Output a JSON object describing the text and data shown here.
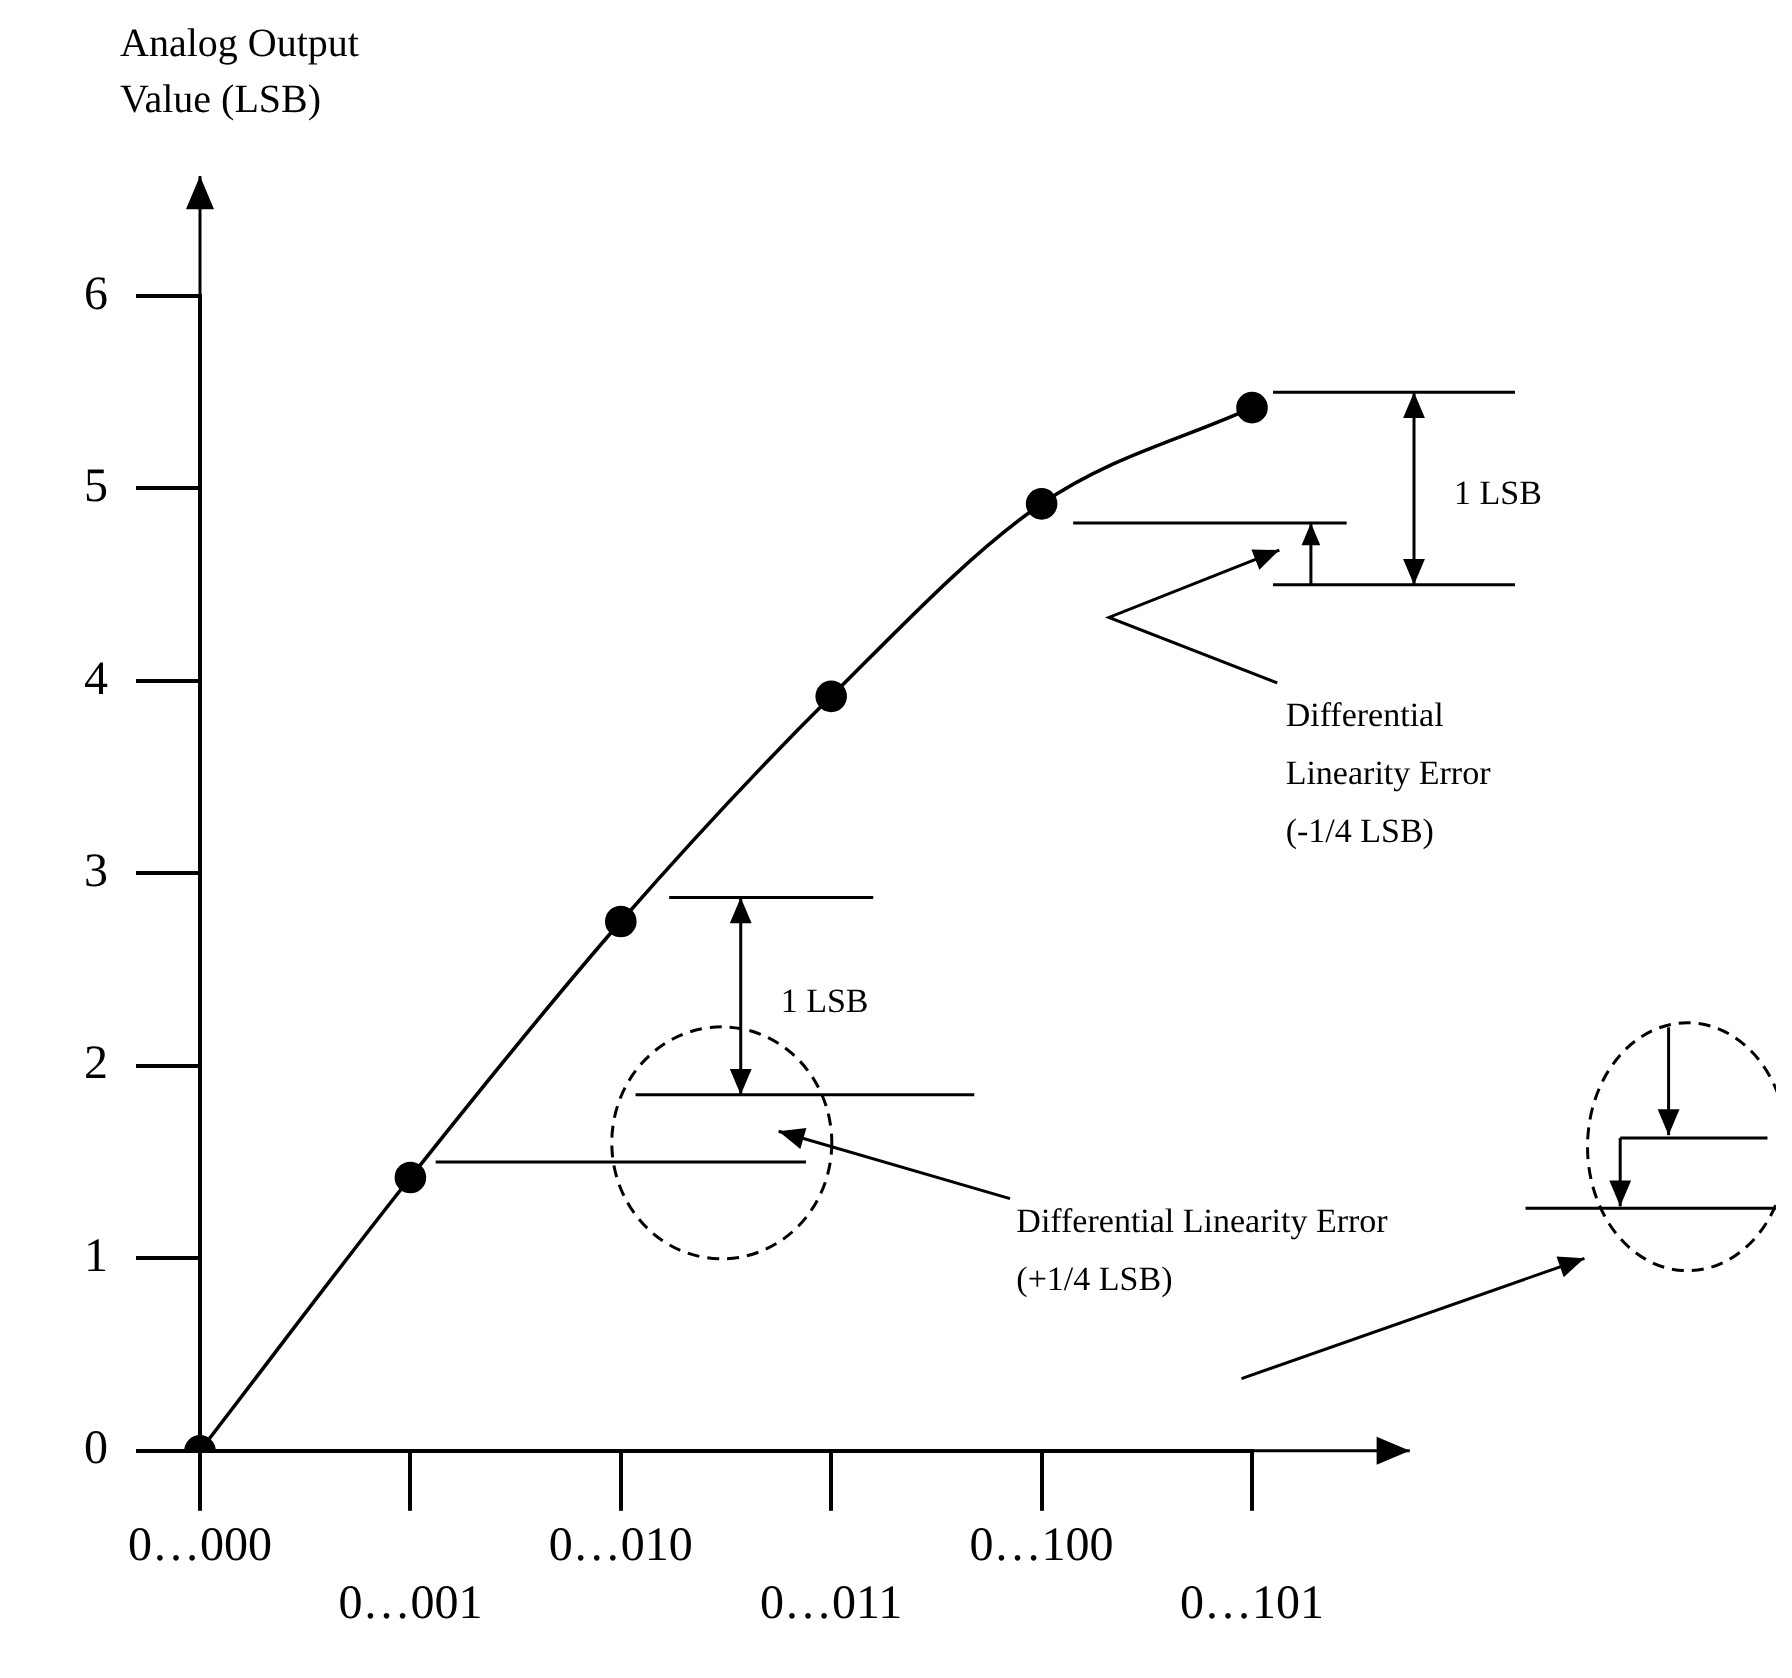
{
  "chart_data": {
    "type": "line",
    "ylabel": "Analog Output Value (LSB)",
    "categories": [
      "0…000",
      "0…001",
      "0…010",
      "0…011",
      "0…100",
      "0…101"
    ],
    "series": [
      {
        "color": "#000000",
        "values": [
          0,
          1.42,
          2.75,
          3.92,
          4.92,
          5.42
        ]
      }
    ],
    "ylim": [
      0,
      6
    ],
    "yticks": [
      0,
      1,
      2,
      3,
      4,
      5,
      6
    ],
    "marker": "circle",
    "line_style": "solid",
    "legend": false,
    "grid": false,
    "annotations": [
      "1 LSB",
      "Differential Linearity Error (+1/4 LSB)",
      "1 LSB",
      "Differential Linearity Error (-1/4 LSB)"
    ]
  }
}
